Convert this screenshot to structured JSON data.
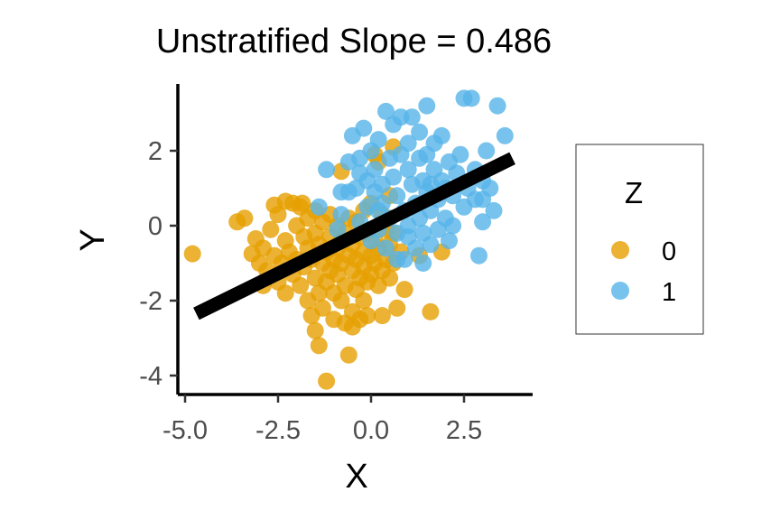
{
  "chart_data": {
    "type": "scatter",
    "title": "Unstratified Slope = 0.486",
    "xlabel": "X",
    "ylabel": "Y",
    "xlim": [
      -5.0,
      4.5
    ],
    "ylim": [
      -4.5,
      3.7
    ],
    "x_ticks": [
      -5.0,
      -2.5,
      0.0,
      2.5
    ],
    "x_tick_labels": [
      "-5.0",
      "-2.5",
      "0.0",
      "2.5"
    ],
    "y_ticks": [
      -4,
      -2,
      0,
      2
    ],
    "y_tick_labels": [
      "-4",
      "-2",
      "0",
      "2"
    ],
    "grid": false,
    "legend": {
      "title": "Z",
      "placement": "right"
    },
    "regression_line": {
      "x": [
        -4.7,
        3.8
      ],
      "y": [
        -2.35,
        1.8
      ],
      "color": "#000000"
    },
    "series": [
      {
        "name": "0",
        "color": "#E69F00",
        "points": [
          [
            -4.8,
            -0.75
          ],
          [
            -3.4,
            0.2
          ],
          [
            -3.2,
            -0.75
          ],
          [
            -3.1,
            -0.35
          ],
          [
            -3.0,
            -1.0
          ],
          [
            -2.9,
            -0.6
          ],
          [
            -2.8,
            -1.2
          ],
          [
            -2.7,
            -0.1
          ],
          [
            -2.6,
            -0.8
          ],
          [
            -2.5,
            -1.5
          ],
          [
            -2.5,
            0.3
          ],
          [
            -2.4,
            -1.0
          ],
          [
            -2.3,
            -0.4
          ],
          [
            -2.3,
            -1.8
          ],
          [
            -2.2,
            -0.7
          ],
          [
            -2.1,
            0.6
          ],
          [
            -2.1,
            -1.3
          ],
          [
            -2.0,
            0.0
          ],
          [
            -2.0,
            -0.9
          ],
          [
            -1.9,
            0.5
          ],
          [
            -1.9,
            -1.6
          ],
          [
            -1.8,
            -0.3
          ],
          [
            -1.8,
            -1.1
          ],
          [
            -1.7,
            0.2
          ],
          [
            -1.7,
            -0.6
          ],
          [
            -1.7,
            -2.0
          ],
          [
            -1.6,
            -0.9
          ],
          [
            -1.6,
            -2.4
          ],
          [
            -1.5,
            0.4
          ],
          [
            -1.5,
            -0.2
          ],
          [
            -1.5,
            -1.4
          ],
          [
            -1.5,
            -2.8
          ],
          [
            -1.4,
            -0.5
          ],
          [
            -1.4,
            -1.8
          ],
          [
            -1.4,
            -3.2
          ],
          [
            -1.3,
            0.1
          ],
          [
            -1.3,
            -1.0
          ],
          [
            -1.3,
            -2.2
          ],
          [
            -1.2,
            -0.7
          ],
          [
            -1.2,
            -1.5
          ],
          [
            -1.2,
            -4.15
          ],
          [
            -1.1,
            0.3
          ],
          [
            -1.1,
            -0.3
          ],
          [
            -1.1,
            -1.2
          ],
          [
            -1.0,
            -2.5
          ],
          [
            -1.0,
            -0.9
          ],
          [
            -1.0,
            -1.8
          ],
          [
            -0.9,
            0.0
          ],
          [
            -0.9,
            -0.6
          ],
          [
            -0.9,
            -1.3
          ],
          [
            -0.8,
            1.45
          ],
          [
            -0.8,
            -0.4
          ],
          [
            -0.8,
            -1.0
          ],
          [
            -0.8,
            -2.0
          ],
          [
            -0.7,
            -0.2
          ],
          [
            -0.7,
            -1.6
          ],
          [
            -0.7,
            -2.6
          ],
          [
            -0.6,
            0.2
          ],
          [
            -0.6,
            -0.8
          ],
          [
            -0.6,
            -3.45
          ],
          [
            -0.5,
            -0.5
          ],
          [
            -0.5,
            -1.2
          ],
          [
            -0.5,
            -2.3
          ],
          [
            -0.4,
            0.1
          ],
          [
            -0.4,
            -0.9
          ],
          [
            -0.4,
            -1.7
          ],
          [
            -0.3,
            -0.3
          ],
          [
            -0.3,
            -1.4
          ],
          [
            -0.3,
            -2.5
          ],
          [
            -0.2,
            0.4
          ],
          [
            -0.2,
            -0.7
          ],
          [
            -0.2,
            -1.1
          ],
          [
            -0.2,
            -2.0
          ],
          [
            -0.1,
            -0.2
          ],
          [
            -0.1,
            -1.5
          ],
          [
            -0.1,
            -2.4
          ],
          [
            0.0,
            0.6
          ],
          [
            0.0,
            -0.8
          ],
          [
            0.0,
            -1.3
          ],
          [
            0.1,
            1.9
          ],
          [
            0.1,
            -0.4
          ],
          [
            0.1,
            -1.0
          ],
          [
            0.2,
            1.7
          ],
          [
            0.2,
            -0.6
          ],
          [
            0.2,
            -1.6
          ],
          [
            0.3,
            0.3
          ],
          [
            0.3,
            -1.2
          ],
          [
            0.4,
            -0.1
          ],
          [
            0.4,
            -0.9
          ],
          [
            0.5,
            0.8
          ],
          [
            0.5,
            -0.5
          ],
          [
            0.5,
            -1.4
          ],
          [
            0.6,
            2.1
          ],
          [
            0.6,
            -0.2
          ],
          [
            0.6,
            -1.0
          ],
          [
            0.7,
            -2.2
          ],
          [
            0.8,
            -0.7
          ],
          [
            0.9,
            -1.7
          ],
          [
            1.3,
            -0.8
          ],
          [
            1.6,
            -2.3
          ],
          [
            1.9,
            -0.7
          ],
          [
            -3.6,
            0.1
          ],
          [
            -2.6,
            0.55
          ],
          [
            -2.3,
            0.65
          ],
          [
            -1.85,
            0.6
          ],
          [
            -2.9,
            -1.6
          ],
          [
            -0.5,
            -2.7
          ],
          [
            0.3,
            -2.4
          ]
        ]
      },
      {
        "name": "1",
        "color": "#56B4E9",
        "points": [
          [
            -1.4,
            0.5
          ],
          [
            -1.2,
            1.5
          ],
          [
            -0.9,
            -0.1
          ],
          [
            -0.8,
            0.3
          ],
          [
            -0.6,
            1.7
          ],
          [
            -0.5,
            2.4
          ],
          [
            -0.4,
            1.0
          ],
          [
            -0.3,
            0.1
          ],
          [
            -0.3,
            1.8
          ],
          [
            -0.2,
            2.6
          ],
          [
            -0.1,
            0.5
          ],
          [
            -0.1,
            1.2
          ],
          [
            0.0,
            -0.4
          ],
          [
            0.0,
            2.0
          ],
          [
            0.1,
            0.9
          ],
          [
            0.1,
            1.5
          ],
          [
            0.2,
            -0.1
          ],
          [
            0.2,
            2.3
          ],
          [
            0.3,
            0.6
          ],
          [
            0.3,
            1.1
          ],
          [
            0.4,
            3.05
          ],
          [
            0.4,
            -0.6
          ],
          [
            0.5,
            1.8
          ],
          [
            0.5,
            0.2
          ],
          [
            0.6,
            2.7
          ],
          [
            0.6,
            1.3
          ],
          [
            0.7,
            -0.2
          ],
          [
            0.7,
            0.8
          ],
          [
            0.8,
            1.9
          ],
          [
            0.8,
            2.9
          ],
          [
            0.9,
            0.4
          ],
          [
            0.9,
            -0.9
          ],
          [
            1.0,
            1.5
          ],
          [
            1.0,
            2.2
          ],
          [
            1.0,
            0.0
          ],
          [
            1.1,
            1.1
          ],
          [
            1.1,
            2.9
          ],
          [
            1.2,
            0.6
          ],
          [
            1.2,
            -0.6
          ],
          [
            1.3,
            1.8
          ],
          [
            1.3,
            2.5
          ],
          [
            1.3,
            0.2
          ],
          [
            1.4,
            1.2
          ],
          [
            1.4,
            -0.2
          ],
          [
            1.5,
            3.2
          ],
          [
            1.5,
            0.9
          ],
          [
            1.5,
            1.9
          ],
          [
            1.6,
            0.4
          ],
          [
            1.6,
            -0.5
          ],
          [
            1.7,
            1.5
          ],
          [
            1.7,
            2.2
          ],
          [
            1.8,
            0.7
          ],
          [
            1.8,
            -0.1
          ],
          [
            1.9,
            1.2
          ],
          [
            1.9,
            2.4
          ],
          [
            2.0,
            0.2
          ],
          [
            2.1,
            1.7
          ],
          [
            2.1,
            -0.4
          ],
          [
            2.2,
            0.8
          ],
          [
            2.3,
            1.4
          ],
          [
            2.4,
            1.9
          ],
          [
            2.5,
            0.5
          ],
          [
            2.5,
            3.4
          ],
          [
            2.6,
            1.0
          ],
          [
            2.7,
            3.4
          ],
          [
            2.8,
            1.5
          ],
          [
            2.8,
            0.7
          ],
          [
            2.9,
            -0.8
          ],
          [
            3.0,
            1.2
          ],
          [
            3.0,
            0.1
          ],
          [
            3.1,
            2.0
          ],
          [
            3.2,
            1.0
          ],
          [
            3.3,
            0.4
          ],
          [
            3.4,
            3.2
          ],
          [
            3.6,
            2.4
          ],
          [
            3.0,
            0.7
          ],
          [
            2.2,
            0.0
          ],
          [
            1.4,
            -1.0
          ],
          [
            0.7,
            -0.9
          ],
          [
            1.0,
            -0.3
          ],
          [
            -0.3,
            1.4
          ],
          [
            0.2,
            0.4
          ],
          [
            1.6,
            1.1
          ],
          [
            2.0,
            1.0
          ],
          [
            -0.6,
            0.9
          ],
          [
            -0.8,
            0.9
          ]
        ]
      }
    ]
  }
}
